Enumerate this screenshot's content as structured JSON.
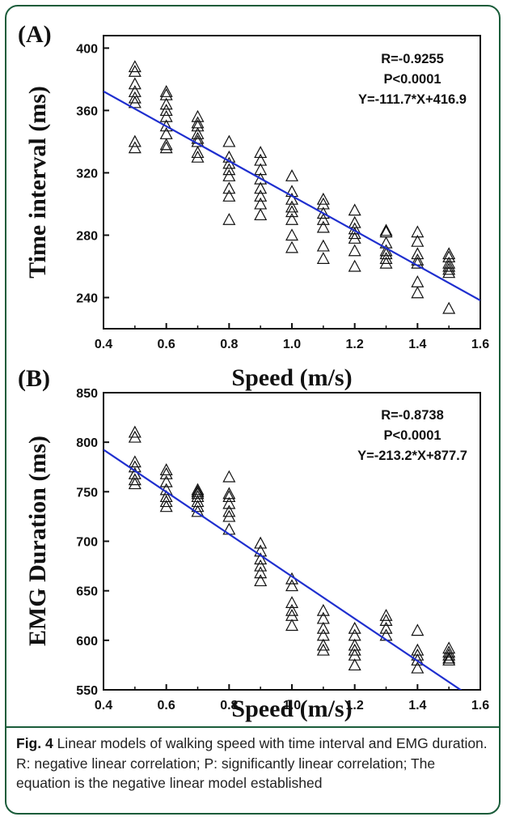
{
  "figure": {
    "caption_label": "Fig. 4",
    "caption_text": "Linear models of walking speed with time interval and EMG duration. R: negative linear correlation; P: significantly linear correlation; The equation is the negative linear model established"
  },
  "chart_data": [
    {
      "type": "scatter",
      "panel_label": "(A)",
      "xlabel": "Speed (m/s)",
      "ylabel": "Time interval (ms)",
      "xlim": [
        0.4,
        1.6
      ],
      "ylim": [
        220,
        408
      ],
      "xticks": [
        "0.4",
        "0.6",
        "0.8",
        "1.0",
        "1.2",
        "1.4",
        "1.6"
      ],
      "yticks": [
        "240",
        "280",
        "320",
        "360",
        "400"
      ],
      "annotations": [
        "R=-0.9255",
        "P<0.0001",
        "Y=-111.7*X+416.9"
      ],
      "fit": {
        "slope": -111.7,
        "intercept": 416.9,
        "color": "#1f2fcf"
      },
      "series": [
        {
          "marker": "open-triangle",
          "points": [
            [
              0.5,
              388
            ],
            [
              0.5,
              385
            ],
            [
              0.5,
              377
            ],
            [
              0.5,
              372
            ],
            [
              0.5,
              368
            ],
            [
              0.5,
              365
            ],
            [
              0.5,
              340
            ],
            [
              0.5,
              336
            ],
            [
              0.6,
              372
            ],
            [
              0.6,
              370
            ],
            [
              0.6,
              364
            ],
            [
              0.6,
              360
            ],
            [
              0.6,
              356
            ],
            [
              0.6,
              350
            ],
            [
              0.6,
              345
            ],
            [
              0.6,
              338
            ],
            [
              0.6,
              336
            ],
            [
              0.7,
              356
            ],
            [
              0.7,
              352
            ],
            [
              0.7,
              350
            ],
            [
              0.7,
              345
            ],
            [
              0.7,
              342
            ],
            [
              0.7,
              340
            ],
            [
              0.7,
              333
            ],
            [
              0.7,
              330
            ],
            [
              0.8,
              340
            ],
            [
              0.8,
              330
            ],
            [
              0.8,
              326
            ],
            [
              0.8,
              322
            ],
            [
              0.8,
              318
            ],
            [
              0.8,
              310
            ],
            [
              0.8,
              305
            ],
            [
              0.8,
              290
            ],
            [
              0.9,
              333
            ],
            [
              0.9,
              328
            ],
            [
              0.9,
              322
            ],
            [
              0.9,
              316
            ],
            [
              0.9,
              310
            ],
            [
              0.9,
              305
            ],
            [
              0.9,
              300
            ],
            [
              0.9,
              293
            ],
            [
              1.0,
              318
            ],
            [
              1.0,
              308
            ],
            [
              1.0,
              303
            ],
            [
              1.0,
              298
            ],
            [
              1.0,
              295
            ],
            [
              1.0,
              290
            ],
            [
              1.0,
              280
            ],
            [
              1.0,
              272
            ],
            [
              1.1,
              303
            ],
            [
              1.1,
              300
            ],
            [
              1.1,
              294
            ],
            [
              1.1,
              290
            ],
            [
              1.1,
              285
            ],
            [
              1.1,
              273
            ],
            [
              1.1,
              265
            ],
            [
              1.2,
              296
            ],
            [
              1.2,
              288
            ],
            [
              1.2,
              284
            ],
            [
              1.2,
              281
            ],
            [
              1.2,
              278
            ],
            [
              1.2,
              270
            ],
            [
              1.2,
              260
            ],
            [
              1.3,
              283
            ],
            [
              1.3,
              282
            ],
            [
              1.3,
              275
            ],
            [
              1.3,
              270
            ],
            [
              1.3,
              268
            ],
            [
              1.3,
              265
            ],
            [
              1.3,
              262
            ],
            [
              1.4,
              282
            ],
            [
              1.4,
              276
            ],
            [
              1.4,
              268
            ],
            [
              1.4,
              264
            ],
            [
              1.4,
              262
            ],
            [
              1.4,
              250
            ],
            [
              1.4,
              243
            ],
            [
              1.5,
              268
            ],
            [
              1.5,
              266
            ],
            [
              1.5,
              262
            ],
            [
              1.5,
              260
            ],
            [
              1.5,
              258
            ],
            [
              1.5,
              256
            ],
            [
              1.5,
              233
            ]
          ]
        }
      ]
    },
    {
      "type": "scatter",
      "panel_label": "(B)",
      "xlabel": "Speed (m/s)",
      "ylabel": "EMG Duration (ms)",
      "xlim": [
        0.4,
        1.6
      ],
      "ylim": [
        550,
        850
      ],
      "xticks": [
        "0.4",
        "0.6",
        "0.8",
        "1.0",
        "1.2",
        "1.4",
        "1.6"
      ],
      "yticks": [
        "550",
        "600",
        "650",
        "700",
        "750",
        "800",
        "850"
      ],
      "annotations": [
        "R=-0.8738",
        "P<0.0001",
        "Y=-213.2*X+877.7"
      ],
      "fit": {
        "slope": -213.2,
        "intercept": 877.7,
        "color": "#1f2fcf"
      },
      "series": [
        {
          "marker": "open-triangle",
          "points": [
            [
              0.5,
              810
            ],
            [
              0.5,
              805
            ],
            [
              0.5,
              780
            ],
            [
              0.5,
              775
            ],
            [
              0.5,
              768
            ],
            [
              0.5,
              762
            ],
            [
              0.5,
              758
            ],
            [
              0.6,
              772
            ],
            [
              0.6,
              768
            ],
            [
              0.6,
              760
            ],
            [
              0.6,
              752
            ],
            [
              0.6,
              745
            ],
            [
              0.6,
              740
            ],
            [
              0.6,
              735
            ],
            [
              0.7,
              752
            ],
            [
              0.7,
              750
            ],
            [
              0.7,
              748
            ],
            [
              0.7,
              745
            ],
            [
              0.7,
              740
            ],
            [
              0.7,
              735
            ],
            [
              0.7,
              730
            ],
            [
              0.8,
              765
            ],
            [
              0.8,
              748
            ],
            [
              0.8,
              745
            ],
            [
              0.8,
              738
            ],
            [
              0.8,
              730
            ],
            [
              0.8,
              725
            ],
            [
              0.8,
              712
            ],
            [
              0.9,
              698
            ],
            [
              0.9,
              690
            ],
            [
              0.9,
              682
            ],
            [
              0.9,
              675
            ],
            [
              0.9,
              668
            ],
            [
              0.9,
              660
            ],
            [
              1.0,
              662
            ],
            [
              1.0,
              655
            ],
            [
              1.0,
              638
            ],
            [
              1.0,
              630
            ],
            [
              1.0,
              625
            ],
            [
              1.0,
              615
            ],
            [
              1.1,
              630
            ],
            [
              1.1,
              622
            ],
            [
              1.1,
              612
            ],
            [
              1.1,
              605
            ],
            [
              1.1,
              595
            ],
            [
              1.1,
              590
            ],
            [
              1.2,
              612
            ],
            [
              1.2,
              605
            ],
            [
              1.2,
              595
            ],
            [
              1.2,
              590
            ],
            [
              1.2,
              585
            ],
            [
              1.2,
              575
            ],
            [
              1.3,
              625
            ],
            [
              1.3,
              620
            ],
            [
              1.3,
              612
            ],
            [
              1.3,
              605
            ],
            [
              1.4,
              610
            ],
            [
              1.4,
              590
            ],
            [
              1.4,
              585
            ],
            [
              1.4,
              580
            ],
            [
              1.4,
              572
            ],
            [
              1.5,
              592
            ],
            [
              1.5,
              588
            ],
            [
              1.5,
              585
            ],
            [
              1.5,
              582
            ],
            [
              1.5,
              580
            ]
          ]
        }
      ]
    }
  ]
}
